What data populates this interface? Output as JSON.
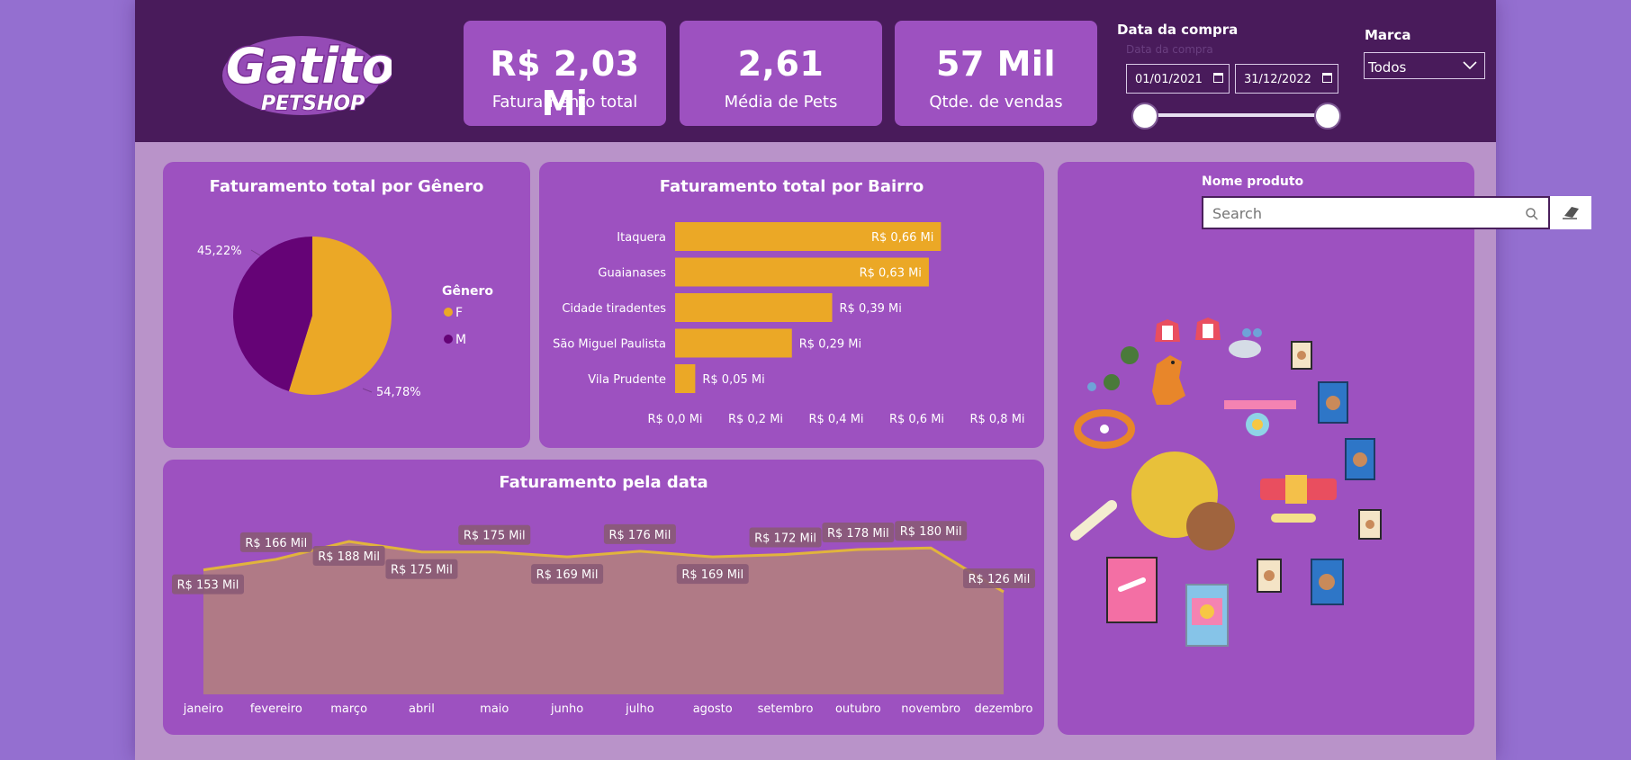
{
  "brand": {
    "logo_main": "Gatito",
    "logo_sub": "PETSHOP"
  },
  "kpis": [
    {
      "value": "R$ 2,03 Mi",
      "label": "Faturamento total"
    },
    {
      "value": "2,61",
      "label": "Média de Pets"
    },
    {
      "value": "57 Mil",
      "label": "Qtde. de vendas"
    }
  ],
  "date_slicer": {
    "title": "Data da compra",
    "ghost_label": "Data da compra",
    "start": "01/01/2021",
    "end": "31/12/2022"
  },
  "brand_slicer": {
    "title": "Marca",
    "value": "Todos"
  },
  "product_slicer": {
    "title": "Nome produto",
    "placeholder": "Search"
  },
  "colors": {
    "header": "#491b5b",
    "panel": "#9d51c0",
    "accent": "#eba826",
    "pie_m": "#650376",
    "area": "#b07a86"
  },
  "chart_data": [
    {
      "type": "pie",
      "title": "Faturamento total por Gênero",
      "legend_title": "Gênero",
      "categories": [
        "F",
        "M"
      ],
      "values": [
        54.78,
        45.22
      ],
      "labels": [
        "54,78%",
        "45,22%"
      ],
      "legend_position": "right"
    },
    {
      "type": "bar",
      "orientation": "horizontal",
      "title": "Faturamento total por Bairro",
      "categories": [
        "Itaquera",
        "Guaianases",
        "Cidade tiradentes",
        "São Miguel Paulista",
        "Vila Prudente"
      ],
      "values": [
        0.66,
        0.63,
        0.39,
        0.29,
        0.05
      ],
      "labels": [
        "R$ 0,66 Mi",
        "R$ 0,63 Mi",
        "R$ 0,39 Mi",
        "R$ 0,29 Mi",
        "R$ 0,05 Mi"
      ],
      "xlim": [
        0,
        0.8
      ],
      "xticks": [
        0,
        0.2,
        0.4,
        0.6,
        0.8
      ],
      "xtick_labels": [
        "R$ 0,0 Mi",
        "R$ 0,2 Mi",
        "R$ 0,4 Mi",
        "R$ 0,6 Mi",
        "R$ 0,8 Mi"
      ]
    },
    {
      "type": "area",
      "title": "Faturamento pela data",
      "categories": [
        "janeiro",
        "fevereiro",
        "março",
        "abril",
        "maio",
        "junho",
        "julho",
        "agosto",
        "setembro",
        "outubro",
        "novembro",
        "dezembro"
      ],
      "values": [
        153,
        166,
        188,
        175,
        175,
        169,
        176,
        169,
        172,
        178,
        180,
        126
      ],
      "labels": [
        "R$ 153 Mil",
        "R$ 166 Mil",
        "R$ 188 Mil",
        "R$ 175 Mil",
        "R$ 175 Mil",
        "R$ 169 Mil",
        "R$ 176 Mil",
        "R$ 169 Mil",
        "R$ 172 Mil",
        "R$ 178 Mil",
        "R$ 180 Mil",
        "R$ 126 Mil"
      ],
      "ylim": [
        0,
        200
      ]
    }
  ]
}
